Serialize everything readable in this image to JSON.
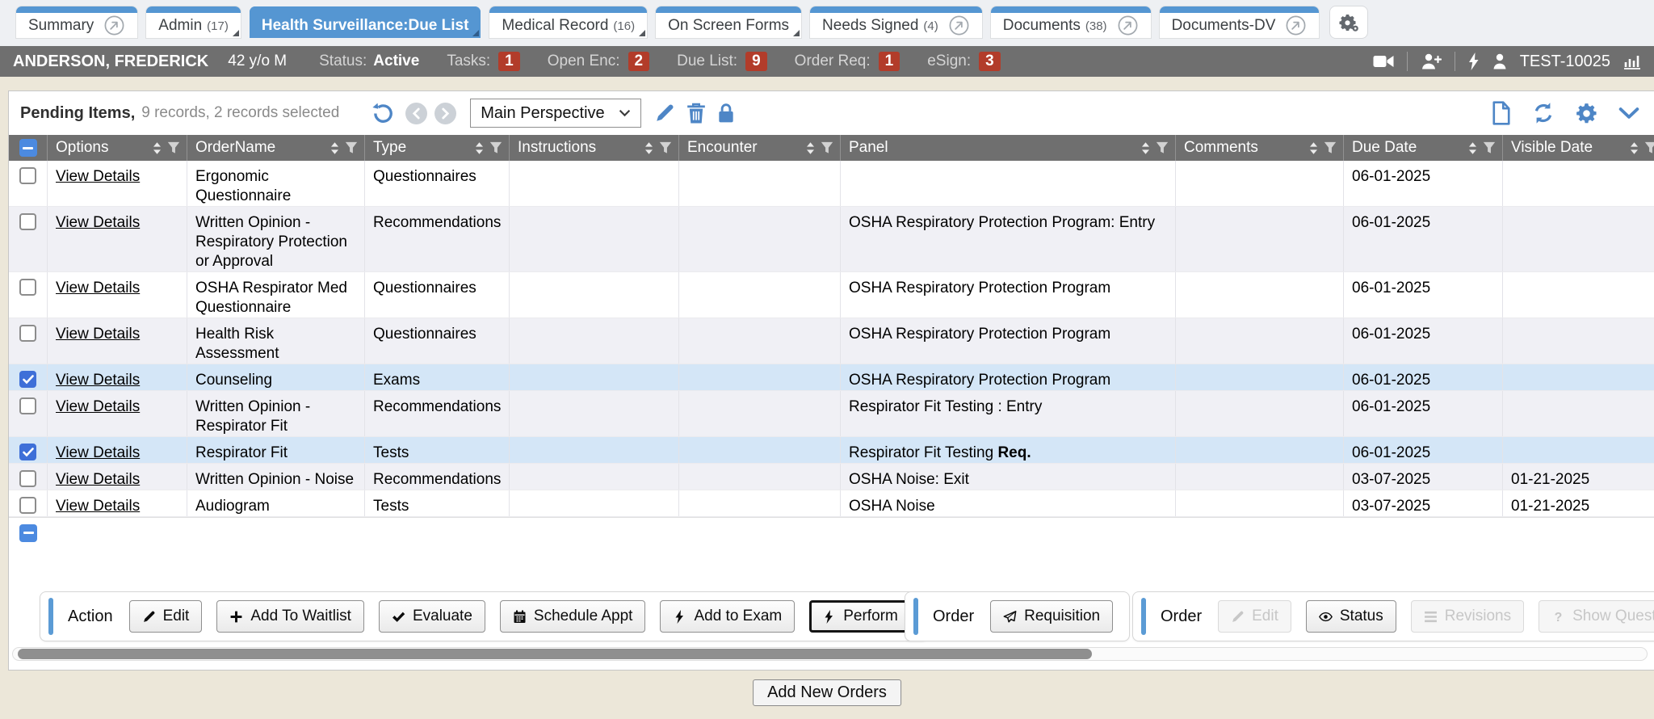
{
  "tabs": [
    {
      "label": "Summary",
      "count": "",
      "icon": "open-in-new-icon",
      "fold": false,
      "active": false
    },
    {
      "label": "Admin",
      "count": "(17)",
      "icon": "",
      "fold": true,
      "active": false
    },
    {
      "label": "Health Surveillance:Due List",
      "count": "",
      "icon": "",
      "fold": true,
      "active": true
    },
    {
      "label": "Medical Record",
      "count": "(16)",
      "icon": "",
      "fold": true,
      "active": false
    },
    {
      "label": "On Screen Forms",
      "count": "",
      "icon": "",
      "fold": true,
      "active": false
    },
    {
      "label": "Needs Signed",
      "count": "(4)",
      "icon": "open-in-new-icon",
      "fold": false,
      "active": false
    },
    {
      "label": "Documents",
      "count": "(38)",
      "icon": "open-in-new-icon",
      "fold": false,
      "active": false
    },
    {
      "label": "Documents-DV",
      "count": "",
      "icon": "open-in-new-icon",
      "fold": false,
      "active": false
    }
  ],
  "tab_bar": {
    "settings_icon": "cogs-icon"
  },
  "patient_banner": {
    "name": "ANDERSON, FREDERICK",
    "demographics": "42 y/o M",
    "status_label": "Status:",
    "status_value": "Active",
    "counters": [
      {
        "label": "Tasks:",
        "value": "1"
      },
      {
        "label": "Open Enc:",
        "value": "2"
      },
      {
        "label": "Due List:",
        "value": "9"
      },
      {
        "label": "Order Req:",
        "value": "1"
      },
      {
        "label": "eSign:",
        "value": "3"
      }
    ],
    "icons": [
      "video-camera-icon",
      "person-add-icon",
      "lightning-icon",
      "person-icon"
    ],
    "user_id": "TEST-10025",
    "trailing_icon": "chart-icon"
  },
  "toolbar": {
    "title": "Pending Items,",
    "records_summary": "9 records, 2 records selected",
    "perspective_value": "Main Perspective",
    "history_icons": [
      "undo-icon",
      "chevron-left-icon",
      "chevron-right-icon"
    ],
    "perspective_icons": [
      "pencil-icon",
      "trash-icon",
      "lock-icon"
    ],
    "right_icons": [
      "new-document-icon",
      "refresh-icon",
      "gear-icon",
      "chevron-down-icon"
    ]
  },
  "table": {
    "select_all_state": "indeterminate",
    "view_details_label": "View Details",
    "columns": [
      {
        "label": "Options",
        "sortable": true,
        "filterable": true
      },
      {
        "label": "OrderName",
        "sortable": true,
        "filterable": true
      },
      {
        "label": "Type",
        "sortable": true,
        "filterable": true
      },
      {
        "label": "Instructions",
        "sortable": true,
        "filterable": true
      },
      {
        "label": "Encounter",
        "sortable": true,
        "filterable": true
      },
      {
        "label": "Panel",
        "sortable": true,
        "filterable": true
      },
      {
        "label": "Comments",
        "sortable": true,
        "filterable": true
      },
      {
        "label": "Due Date",
        "sortable": true,
        "filterable": true
      },
      {
        "label": "Visible Date",
        "sortable": true,
        "filterable": true
      }
    ],
    "rows": [
      {
        "checked": false,
        "order_name": "Ergonomic Questionnaire",
        "type": "Questionnaires",
        "instructions": "",
        "encounter": "",
        "panel": "",
        "panel_bold": "",
        "comments": "",
        "due_date": "06-01-2025",
        "visible_date": ""
      },
      {
        "checked": false,
        "order_name": "Written Opinion - Respiratory Protection or Approval",
        "type": "Recommendations",
        "instructions": "",
        "encounter": "",
        "panel": "OSHA Respiratory Protection Program: Entry",
        "panel_bold": "",
        "comments": "",
        "due_date": "06-01-2025",
        "visible_date": ""
      },
      {
        "checked": false,
        "order_name": "OSHA Respirator Med Questionnaire",
        "type": "Questionnaires",
        "instructions": "",
        "encounter": "",
        "panel": "OSHA Respiratory Protection Program",
        "panel_bold": "",
        "comments": "",
        "due_date": "06-01-2025",
        "visible_date": ""
      },
      {
        "checked": false,
        "order_name": "Health Risk Assessment",
        "type": "Questionnaires",
        "instructions": "",
        "encounter": "",
        "panel": "OSHA Respiratory Protection Program",
        "panel_bold": "",
        "comments": "",
        "due_date": "06-01-2025",
        "visible_date": ""
      },
      {
        "checked": true,
        "order_name": "Counseling",
        "type": "Exams",
        "instructions": "",
        "encounter": "",
        "panel": "OSHA Respiratory Protection Program",
        "panel_bold": "",
        "comments": "",
        "due_date": "06-01-2025",
        "visible_date": ""
      },
      {
        "checked": false,
        "order_name": "Written Opinion - Respirator Fit",
        "type": "Recommendations",
        "instructions": "",
        "encounter": "",
        "panel": "Respirator Fit Testing : Entry",
        "panel_bold": "",
        "comments": "",
        "due_date": "06-01-2025",
        "visible_date": ""
      },
      {
        "checked": true,
        "order_name": "Respirator Fit",
        "type": "Tests",
        "instructions": "",
        "encounter": "",
        "panel": "Respirator Fit Testing ",
        "panel_bold": "Req.",
        "comments": "",
        "due_date": "06-01-2025",
        "visible_date": ""
      },
      {
        "checked": false,
        "order_name": "Written Opinion - Noise",
        "type": "Recommendations",
        "instructions": "",
        "encounter": "",
        "panel": "OSHA Noise: Exit",
        "panel_bold": "",
        "comments": "",
        "due_date": "03-07-2025",
        "visible_date": "01-21-2025"
      },
      {
        "checked": false,
        "order_name": "Audiogram",
        "type": "Tests",
        "instructions": "",
        "encounter": "",
        "panel": "OSHA Noise",
        "panel_bold": "",
        "comments": "",
        "due_date": "03-07-2025",
        "visible_date": "01-21-2025"
      }
    ]
  },
  "action_bar": {
    "groups": [
      {
        "label": "Action",
        "buttons": [
          {
            "label": "Edit",
            "icon": "pencil-icon"
          },
          {
            "label": "Add To Waitlist",
            "icon": "plus-icon"
          },
          {
            "label": "Evaluate",
            "icon": "check-icon"
          },
          {
            "label": "Schedule Appt",
            "icon": "calendar-icon"
          },
          {
            "label": "Add to Exam",
            "icon": "bolt-icon"
          },
          {
            "label": "Perform",
            "icon": "bolt-icon",
            "focused": true
          }
        ]
      },
      {
        "label": "Order",
        "buttons": [
          {
            "label": "Requisition",
            "icon": "send-icon"
          }
        ]
      },
      {
        "label": "Order",
        "buttons": [
          {
            "label": "Edit",
            "icon": "pencil-icon",
            "disabled": true
          },
          {
            "label": "Status",
            "icon": "eye-icon"
          },
          {
            "label": "Revisions",
            "icon": "menu-icon",
            "disabled": true
          },
          {
            "label": "Show Question",
            "icon": "question-icon",
            "disabled": true
          }
        ]
      }
    ]
  },
  "footer": {
    "add_button_label": "Add New Orders"
  },
  "colors": {
    "tab_accent": "#5596d2",
    "banner_bg": "#6f6f6f",
    "badge_red": "#b23c2a",
    "page_bg": "#ece7d9",
    "header_bg": "#6f6f6f",
    "alt_row": "#f0f0f5",
    "selected_row": "#d4e6f7",
    "checkbox_blue": "#3e6fd8",
    "icon_blue": "#4e86c6"
  }
}
